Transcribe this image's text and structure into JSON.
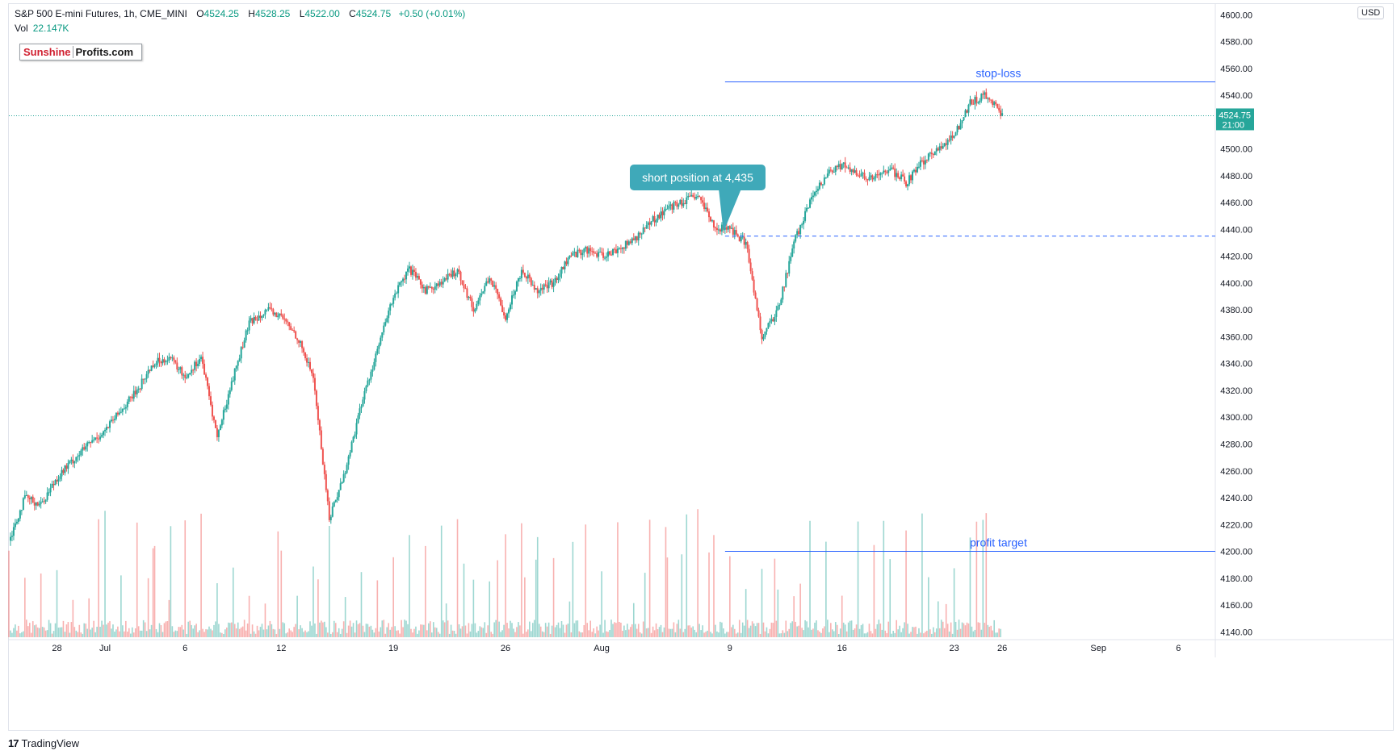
{
  "header": {
    "symbol": "S&P 500 E-mini Futures, 1h, CME_MINI",
    "open_label": "O",
    "open": "4524.25",
    "high_label": "H",
    "high": "4528.25",
    "low_label": "L",
    "low": "4522.00",
    "close_label": "C",
    "close": "4524.75",
    "change": "+0.50 (+0.01%)"
  },
  "volume": {
    "label": "Vol",
    "value": "22.147K"
  },
  "logo": {
    "part1": "Sunshine",
    "part2": "Profits.com"
  },
  "currency": "USD",
  "brand": {
    "mark": "17",
    "name": "TradingView"
  },
  "price_tag": {
    "value": "4524.75",
    "countdown": "21:00"
  },
  "colors": {
    "up": "#26a69a",
    "down": "#ef5350",
    "annotation_line": "#2962ff",
    "callout": "#3fa9b9"
  },
  "chart_data": {
    "type": "line",
    "title": "",
    "interval": "1h",
    "y_axis": {
      "ticks": [
        4140,
        4160,
        4180,
        4200,
        4220,
        4240,
        4260,
        4280,
        4300,
        4320,
        4340,
        4360,
        4380,
        4400,
        4420,
        4440,
        4460,
        4480,
        4500,
        4520,
        4540,
        4560,
        4580,
        4600
      ],
      "range": [
        4136,
        4608
      ],
      "position": "right"
    },
    "x_axis": {
      "ticks": [
        {
          "label": "28",
          "day": 2
        },
        {
          "label": "Jul",
          "day": 5
        },
        {
          "label": "6",
          "day": 10
        },
        {
          "label": "12",
          "day": 16
        },
        {
          "label": "19",
          "day": 23
        },
        {
          "label": "26",
          "day": 30
        },
        {
          "label": "Aug",
          "day": 36
        },
        {
          "label": "9",
          "day": 44
        },
        {
          "label": "16",
          "day": 51
        },
        {
          "label": "23",
          "day": 58
        },
        {
          "label": "26",
          "day": 61
        },
        {
          "label": "Sep",
          "day": 67
        },
        {
          "label": "6",
          "day": 72
        }
      ],
      "range": [
        -1.05,
        74.3
      ]
    },
    "price_path": [
      [
        -1,
        4208
      ],
      [
        0,
        4240
      ],
      [
        1,
        4235
      ],
      [
        2,
        4255
      ],
      [
        3,
        4268
      ],
      [
        4,
        4280
      ],
      [
        5,
        4290
      ],
      [
        6,
        4305
      ],
      [
        7,
        4320
      ],
      [
        8,
        4340
      ],
      [
        9,
        4345
      ],
      [
        10,
        4330
      ],
      [
        11,
        4345
      ],
      [
        12,
        4285
      ],
      [
        13,
        4330
      ],
      [
        14,
        4370
      ],
      [
        15,
        4380
      ],
      [
        16,
        4375
      ],
      [
        17,
        4360
      ],
      [
        18,
        4330
      ],
      [
        19,
        4225
      ],
      [
        20,
        4260
      ],
      [
        21,
        4310
      ],
      [
        22,
        4350
      ],
      [
        23,
        4390
      ],
      [
        24,
        4410
      ],
      [
        25,
        4395
      ],
      [
        26,
        4400
      ],
      [
        27,
        4410
      ],
      [
        28,
        4380
      ],
      [
        29,
        4405
      ],
      [
        30,
        4375
      ],
      [
        31,
        4410
      ],
      [
        32,
        4395
      ],
      [
        33,
        4400
      ],
      [
        34,
        4420
      ],
      [
        35,
        4425
      ],
      [
        36,
        4420
      ],
      [
        37,
        4425
      ],
      [
        38,
        4432
      ],
      [
        39,
        4445
      ],
      [
        40,
        4455
      ],
      [
        41,
        4460
      ],
      [
        42,
        4465
      ],
      [
        43,
        4442
      ],
      [
        44,
        4440
      ],
      [
        45,
        4430
      ],
      [
        46,
        4360
      ],
      [
        47,
        4380
      ],
      [
        48,
        4430
      ],
      [
        49,
        4460
      ],
      [
        50,
        4480
      ],
      [
        51,
        4488
      ],
      [
        52,
        4480
      ],
      [
        53,
        4478
      ],
      [
        54,
        4485
      ],
      [
        55,
        4475
      ],
      [
        56,
        4490
      ],
      [
        57,
        4500
      ],
      [
        58,
        4510
      ],
      [
        59,
        4535
      ],
      [
        60,
        4540
      ],
      [
        61,
        4524.75
      ]
    ],
    "volume_range": [
      0,
      100
    ],
    "annotations": [
      {
        "type": "hline",
        "label": "stop-loss",
        "y": 4550,
        "x_start": 43.7,
        "style": "solid"
      },
      {
        "type": "hline",
        "label": "profit target",
        "y": 4200,
        "x_start": 43.7,
        "style": "solid"
      },
      {
        "type": "hline",
        "label": "",
        "y": 4435,
        "x_start": 43.7,
        "style": "dashed"
      },
      {
        "type": "callout",
        "label": "short position at 4,435",
        "x": 43.6,
        "y": 4438
      },
      {
        "type": "hline",
        "label": "",
        "y": 4524.75,
        "x_start": -1,
        "style": "dotted"
      }
    ]
  }
}
